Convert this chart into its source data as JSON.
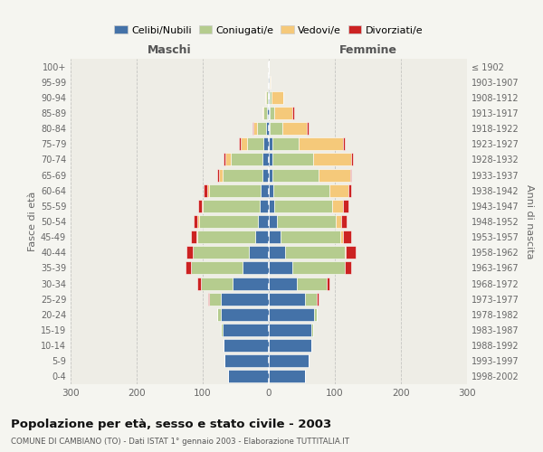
{
  "age_groups": [
    "100+",
    "95-99",
    "90-94",
    "85-89",
    "80-84",
    "75-79",
    "70-74",
    "65-69",
    "60-64",
    "55-59",
    "50-54",
    "45-49",
    "40-44",
    "35-39",
    "30-34",
    "25-29",
    "20-24",
    "15-19",
    "10-14",
    "5-9",
    "0-4"
  ],
  "birth_years": [
    "≤ 1902",
    "1903-1907",
    "1908-1912",
    "1913-1917",
    "1918-1922",
    "1923-1927",
    "1928-1932",
    "1933-1937",
    "1938-1942",
    "1943-1947",
    "1948-1952",
    "1953-1957",
    "1958-1962",
    "1963-1967",
    "1968-1972",
    "1973-1977",
    "1978-1982",
    "1983-1987",
    "1988-1992",
    "1993-1997",
    "1998-2002"
  ],
  "maschi_celibi": [
    0,
    0,
    2,
    3,
    4,
    8,
    10,
    10,
    12,
    14,
    16,
    20,
    30,
    40,
    55,
    72,
    73,
    70,
    68,
    67,
    62
  ],
  "maschi_coniugati": [
    0,
    0,
    2,
    5,
    14,
    25,
    48,
    60,
    78,
    86,
    90,
    88,
    85,
    78,
    48,
    18,
    5,
    2,
    0,
    0,
    0
  ],
  "maschi_vedovi": [
    0,
    0,
    1,
    2,
    5,
    10,
    8,
    6,
    3,
    2,
    2,
    2,
    0,
    0,
    0,
    0,
    0,
    0,
    0,
    0,
    0
  ],
  "maschi_divorziati": [
    0,
    0,
    0,
    0,
    2,
    2,
    2,
    2,
    6,
    5,
    6,
    8,
    10,
    8,
    5,
    2,
    0,
    0,
    0,
    0,
    0
  ],
  "femmine_nubili": [
    0,
    1,
    2,
    2,
    2,
    5,
    5,
    5,
    7,
    8,
    12,
    18,
    25,
    35,
    42,
    55,
    68,
    65,
    65,
    60,
    55
  ],
  "femmine_coniugate": [
    0,
    0,
    2,
    6,
    18,
    40,
    62,
    70,
    85,
    88,
    90,
    90,
    90,
    80,
    45,
    18,
    5,
    2,
    0,
    0,
    0
  ],
  "femmine_vedove": [
    0,
    2,
    18,
    28,
    38,
    68,
    58,
    48,
    28,
    16,
    8,
    5,
    2,
    0,
    0,
    0,
    0,
    0,
    0,
    0,
    0
  ],
  "femmine_divorziate": [
    0,
    0,
    0,
    2,
    2,
    2,
    2,
    2,
    5,
    8,
    8,
    12,
    15,
    10,
    5,
    2,
    0,
    0,
    0,
    0,
    0
  ],
  "color_celibi": "#4472a8",
  "color_coniugati": "#b5cc8e",
  "color_vedovi": "#f5c97a",
  "color_divorziati": "#cc2222",
  "legend_labels": [
    "Celibi/Nubili",
    "Coniugati/e",
    "Vedovi/e",
    "Divorziati/e"
  ],
  "title": "Popolazione per età, sesso e stato civile - 2003",
  "subtitle": "COMUNE DI CAMBIANO (TO) - Dati ISTAT 1° gennaio 2003 - Elaborazione TUTTITALIA.IT",
  "header_left": "Maschi",
  "header_right": "Femmine",
  "ylabel_left": "Fasce di età",
  "ylabel_right": "Anni di nascita",
  "xlim": 300,
  "bg_color": "#f5f5f0",
  "plot_bg": "#eeede6"
}
